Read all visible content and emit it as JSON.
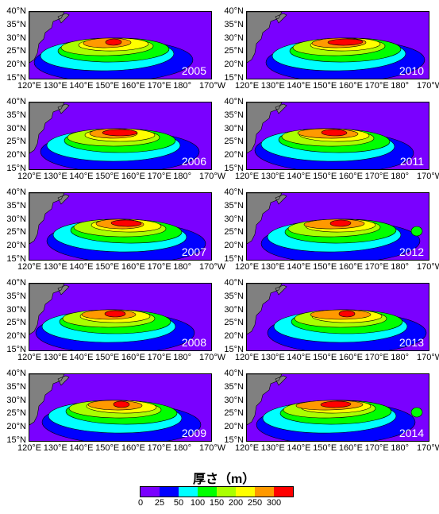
{
  "panels": [
    {
      "year": "2005",
      "col": 0,
      "row": 0
    },
    {
      "year": "2006",
      "col": 0,
      "row": 1
    },
    {
      "year": "2007",
      "col": 0,
      "row": 2
    },
    {
      "year": "2008",
      "col": 0,
      "row": 3
    },
    {
      "year": "2009",
      "col": 0,
      "row": 4
    },
    {
      "year": "2010",
      "col": 1,
      "row": 0
    },
    {
      "year": "2011",
      "col": 1,
      "row": 1
    },
    {
      "year": "2012",
      "col": 1,
      "row": 2
    },
    {
      "year": "2013",
      "col": 1,
      "row": 3
    },
    {
      "year": "2014",
      "col": 1,
      "row": 4
    }
  ],
  "lat_labels": [
    "40°N",
    "35°N",
    "30°N",
    "25°N",
    "20°N",
    "15°N"
  ],
  "lon_labels": [
    "120°E",
    "130°E",
    "140°E",
    "150°E",
    "160°E",
    "170°E",
    "180°",
    "170°W"
  ],
  "legend": {
    "title": "厚さ（m）",
    "ticks": [
      "0",
      "25",
      "50",
      "100",
      "150",
      "200",
      "250",
      "300"
    ],
    "colors": [
      "#7a00ff",
      "#0000ff",
      "#00ffff",
      "#00ff00",
      "#aaff00",
      "#ffff00",
      "#ff9900",
      "#ff0000"
    ]
  }
}
